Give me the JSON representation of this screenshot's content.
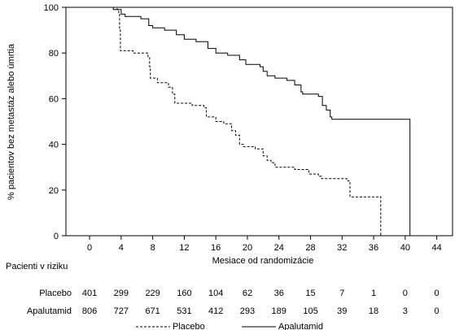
{
  "chart_data": {
    "type": "line",
    "chart_kind": "kaplan-meier",
    "ylabel": "% pacientov bez metastáz alebo úmrtia",
    "xlabel": "Mesiace od randomizácie",
    "xlim": [
      -3,
      46
    ],
    "ylim": [
      0,
      100
    ],
    "x_ticks": [
      0,
      4,
      8,
      12,
      16,
      20,
      24,
      28,
      32,
      36,
      40,
      44
    ],
    "y_ticks": [
      0,
      20,
      40,
      60,
      80,
      100
    ],
    "grid": false,
    "legend_position": "bottom",
    "series": [
      {
        "name": "Placebo",
        "style": "dashed",
        "color": "#000000",
        "points": [
          [
            0,
            100
          ],
          [
            2.5,
            100
          ],
          [
            3.5,
            99
          ],
          [
            3.7,
            97
          ],
          [
            3.8,
            90
          ],
          [
            3.9,
            81
          ],
          [
            5.5,
            80
          ],
          [
            7.4,
            78
          ],
          [
            7.6,
            74
          ],
          [
            7.7,
            69
          ],
          [
            8.6,
            67
          ],
          [
            10,
            65
          ],
          [
            10.5,
            62
          ],
          [
            10.8,
            58
          ],
          [
            13,
            57
          ],
          [
            14.5,
            56
          ],
          [
            14.8,
            52
          ],
          [
            16,
            50
          ],
          [
            17,
            49
          ],
          [
            18,
            46
          ],
          [
            18.5,
            44
          ],
          [
            19,
            40
          ],
          [
            19.5,
            39
          ],
          [
            21,
            38
          ],
          [
            22,
            35
          ],
          [
            22.5,
            33
          ],
          [
            23,
            32
          ],
          [
            23.5,
            30
          ],
          [
            26,
            29
          ],
          [
            27.8,
            27
          ],
          [
            29,
            26
          ],
          [
            29.4,
            25
          ],
          [
            32.6,
            24
          ],
          [
            33,
            17
          ],
          [
            36.1,
            17
          ],
          [
            36.9,
            0
          ]
        ]
      },
      {
        "name": "Apalutamid",
        "style": "solid",
        "color": "#000000",
        "points": [
          [
            0,
            100
          ],
          [
            1.5,
            100
          ],
          [
            3,
            99
          ],
          [
            4,
            97
          ],
          [
            4.5,
            96
          ],
          [
            6.5,
            95
          ],
          [
            7.5,
            92
          ],
          [
            8,
            91
          ],
          [
            9.5,
            90
          ],
          [
            11,
            88
          ],
          [
            12,
            86
          ],
          [
            13.5,
            85
          ],
          [
            15,
            82
          ],
          [
            16,
            80
          ],
          [
            17.5,
            79
          ],
          [
            19,
            77
          ],
          [
            19.8,
            75
          ],
          [
            21.6,
            74
          ],
          [
            22,
            72
          ],
          [
            22.5,
            70
          ],
          [
            23.5,
            69
          ],
          [
            25,
            68
          ],
          [
            26,
            66
          ],
          [
            26.8,
            63
          ],
          [
            27,
            62
          ],
          [
            29,
            61
          ],
          [
            29.5,
            57
          ],
          [
            30,
            55
          ],
          [
            30.5,
            52
          ],
          [
            30.7,
            51
          ],
          [
            40.6,
            51
          ],
          [
            40.6,
            0
          ]
        ]
      }
    ],
    "risk_table": {
      "title": "Pacienti v riziku",
      "time_points": [
        0,
        4,
        8,
        12,
        16,
        20,
        24,
        28,
        32,
        36,
        40,
        44
      ],
      "rows": [
        {
          "label": "Placebo",
          "values": [
            "401",
            "299",
            "229",
            "160",
            "104",
            "62",
            "36",
            "15",
            "7",
            "1",
            "0",
            "0"
          ]
        },
        {
          "label": "Apalutamid",
          "values": [
            "806",
            "727",
            "671",
            "531",
            "412",
            "293",
            "189",
            "105",
            "39",
            "18",
            "3",
            "0"
          ]
        }
      ]
    }
  }
}
